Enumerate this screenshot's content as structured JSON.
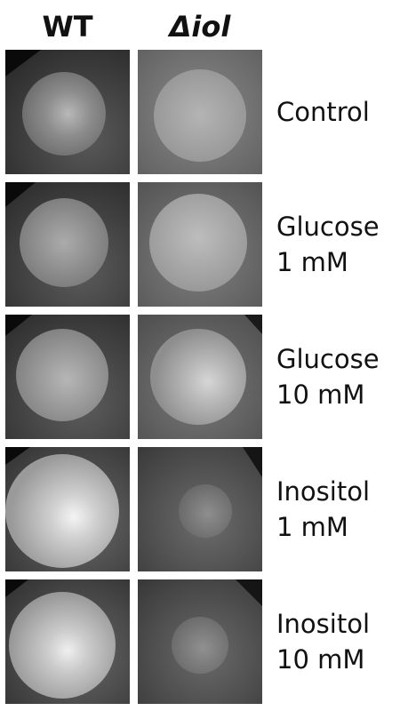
{
  "columns": {
    "wt": "WT",
    "mutant": "Δiol"
  },
  "rows": [
    {
      "line1": "Control",
      "line2": ""
    },
    {
      "line1": "Glucose",
      "line2": "1 mM"
    },
    {
      "line1": "Glucose",
      "line2": "10 mM"
    },
    {
      "line1": "Inositol",
      "line2": "1 mM"
    },
    {
      "line1": "Inositol",
      "line2": "10 mM"
    }
  ]
}
